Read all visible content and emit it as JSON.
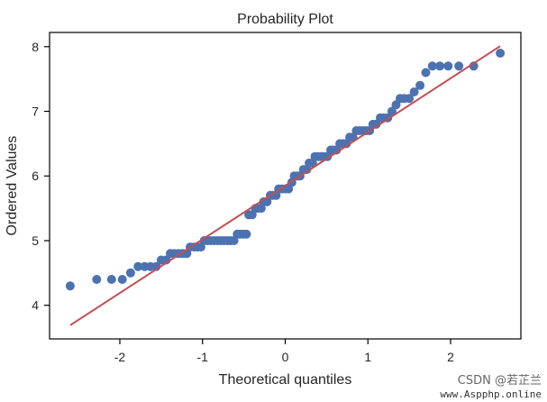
{
  "chart_data": {
    "type": "scatter",
    "title": "Probability Plot",
    "xlabel": "Theoretical quantiles",
    "ylabel": "Ordered Values",
    "xlim": [
      -2.85,
      2.85
    ],
    "ylim": [
      3.48,
      8.22
    ],
    "xticks": [
      -2,
      -1,
      0,
      1,
      2
    ],
    "xtick_labels": [
      "-2",
      "-1",
      "0",
      "1",
      "2"
    ],
    "yticks": [
      4,
      5,
      6,
      7,
      8
    ],
    "ytick_labels": [
      "4",
      "5",
      "6",
      "7",
      "8"
    ],
    "grid": false,
    "colors": {
      "points": "#4c72b0",
      "fit_line": "#c44e52",
      "axes": "#000000"
    },
    "series": [
      {
        "kind": "points",
        "x": [
          -2.6,
          -2.28,
          -2.1,
          -1.97,
          -1.87,
          -1.78,
          -1.7,
          -1.63,
          -1.56,
          -1.5,
          -1.44,
          -1.39,
          -1.34,
          -1.29,
          -1.24,
          -1.19,
          -1.15,
          -1.1,
          -1.06,
          -1.02,
          -0.98,
          -0.94,
          -0.9,
          -0.86,
          -0.82,
          -0.78,
          -0.74,
          -0.7,
          -0.66,
          -0.62,
          -0.58,
          -0.55,
          -0.51,
          -0.47,
          -0.44,
          -0.4,
          -0.36,
          -0.33,
          -0.29,
          -0.26,
          -0.22,
          -0.18,
          -0.15,
          -0.11,
          -0.08,
          -0.04,
          0.0,
          0.04,
          0.08,
          0.11,
          0.15,
          0.18,
          0.22,
          0.26,
          0.29,
          0.33,
          0.36,
          0.4,
          0.44,
          0.47,
          0.51,
          0.55,
          0.58,
          0.62,
          0.66,
          0.7,
          0.74,
          0.78,
          0.82,
          0.86,
          0.9,
          0.94,
          0.98,
          1.02,
          1.06,
          1.1,
          1.15,
          1.19,
          1.24,
          1.29,
          1.34,
          1.39,
          1.44,
          1.5,
          1.56,
          1.63,
          1.7,
          1.78,
          1.87,
          1.97,
          2.1,
          2.28,
          2.6
        ],
        "y": [
          4.3,
          4.4,
          4.4,
          4.4,
          4.5,
          4.6,
          4.6,
          4.6,
          4.6,
          4.7,
          4.7,
          4.8,
          4.8,
          4.8,
          4.8,
          4.8,
          4.9,
          4.9,
          4.9,
          4.9,
          5.0,
          5.0,
          5.0,
          5.0,
          5.0,
          5.0,
          5.0,
          5.0,
          5.0,
          5.0,
          5.1,
          5.1,
          5.1,
          5.1,
          5.4,
          5.4,
          5.5,
          5.5,
          5.5,
          5.6,
          5.6,
          5.7,
          5.7,
          5.7,
          5.8,
          5.8,
          5.8,
          5.8,
          5.9,
          6.0,
          6.0,
          6.0,
          6.1,
          6.1,
          6.2,
          6.2,
          6.3,
          6.3,
          6.3,
          6.3,
          6.3,
          6.4,
          6.4,
          6.4,
          6.5,
          6.5,
          6.5,
          6.6,
          6.6,
          6.7,
          6.7,
          6.7,
          6.7,
          6.7,
          6.8,
          6.8,
          6.9,
          6.9,
          6.9,
          7.0,
          7.1,
          7.2,
          7.2,
          7.2,
          7.3,
          7.4,
          7.6,
          7.7,
          7.7,
          7.7,
          7.7,
          7.7,
          7.9
        ]
      },
      {
        "kind": "fit_line",
        "slope": 0.83,
        "intercept": 5.85,
        "x_range": [
          -2.6,
          2.6
        ]
      }
    ]
  },
  "watermark": {
    "line1": "CSDN @若芷兰",
    "line2": "www.Aspphp.online"
  }
}
